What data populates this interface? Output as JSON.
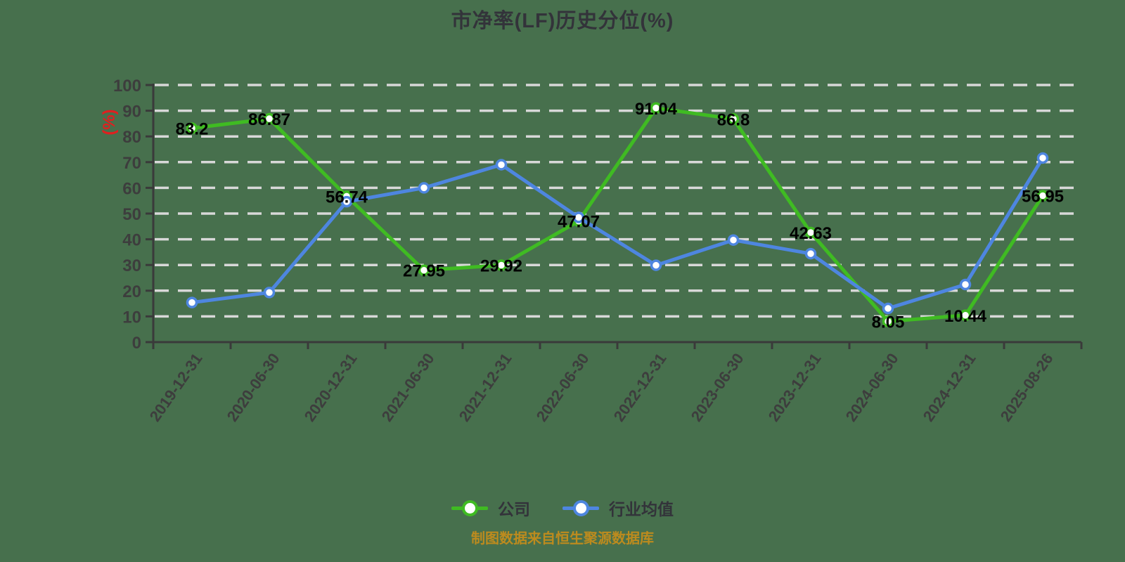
{
  "title": "市净率(LF)历史分位(%)",
  "y_axis_name": "(%)",
  "footer": "制图数据来自恒生聚源数据库",
  "legend": {
    "company_label": "公司",
    "industry_label": "行业均值"
  },
  "colors": {
    "background": "#47704d",
    "grid": "#d8d8d8",
    "axis": "#3a3a3a",
    "tick_label": "#3d3d3d",
    "title": "#33333a",
    "y_name": "#e01f1f",
    "data_label": "#000000",
    "footer": "#bd8b1e",
    "company": "#3fbb22",
    "industry": "#4e86e0"
  },
  "chart_data": {
    "type": "line",
    "title": "市净率(LF)历史分位(%)",
    "xlabel": "",
    "ylabel": "(%)",
    "ylim": [
      0,
      100
    ],
    "y_tick_step": 10,
    "grid": "horizontal dashed",
    "legend_position": "bottom center",
    "categories": [
      "2019-12-31",
      "2020-06-30",
      "2020-12-31",
      "2021-06-30",
      "2021-12-31",
      "2022-06-30",
      "2022-12-31",
      "2023-06-30",
      "2023-12-31",
      "2024-06-30",
      "2024-12-31",
      "2025-08-26"
    ],
    "series": [
      {
        "name": "公司",
        "color": "#3fbb22",
        "show_labels": true,
        "values": [
          83.2,
          86.87,
          56.74,
          27.95,
          29.92,
          47.07,
          91.04,
          86.8,
          42.63,
          8.05,
          10.44,
          56.95
        ]
      },
      {
        "name": "行业均值",
        "color": "#4e86e0",
        "show_labels": false,
        "values": [
          15.4,
          19.3,
          54.6,
          60.0,
          69.0,
          48.5,
          29.9,
          39.7,
          34.4,
          13.1,
          22.4,
          71.6
        ]
      }
    ]
  }
}
